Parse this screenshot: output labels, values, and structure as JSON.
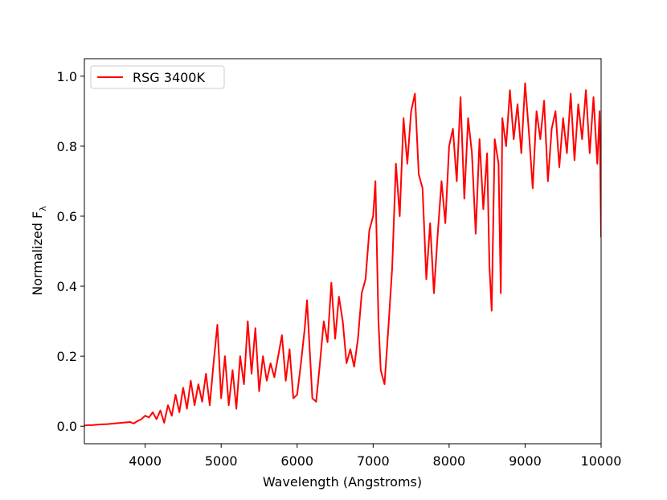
{
  "chart_data": {
    "type": "line",
    "xlabel": "Wavelength (Angstroms)",
    "ylabel": "Normalized F",
    "ylabel_subscript": "λ",
    "legend_position": "upper left",
    "xlim": [
      3200,
      10000
    ],
    "ylim": [
      -0.05,
      1.05
    ],
    "xticks": [
      4000,
      5000,
      6000,
      7000,
      8000,
      9000,
      10000
    ],
    "yticks": [
      {
        "value": 0,
        "label": "0.0"
      },
      0.2,
      0.4,
      0.6,
      0.8,
      {
        "value": 1,
        "label": "1.0"
      }
    ],
    "x": [
      3200,
      3250,
      3300,
      3400,
      3500,
      3600,
      3700,
      3800,
      3850,
      3900,
      3950,
      4000,
      4050,
      4100,
      4150,
      4200,
      4250,
      4300,
      4350,
      4400,
      4450,
      4500,
      4550,
      4600,
      4650,
      4700,
      4750,
      4800,
      4850,
      4900,
      4950,
      5000,
      5050,
      5100,
      5150,
      5200,
      5250,
      5300,
      5350,
      5400,
      5450,
      5500,
      5550,
      5600,
      5650,
      5700,
      5750,
      5800,
      5850,
      5900,
      5950,
      6000,
      6050,
      6100,
      6130,
      6170,
      6200,
      6250,
      6300,
      6350,
      6400,
      6450,
      6500,
      6550,
      6600,
      6650,
      6700,
      6750,
      6800,
      6850,
      6900,
      6950,
      7000,
      7030,
      7070,
      7100,
      7150,
      7200,
      7250,
      7300,
      7350,
      7400,
      7450,
      7500,
      7550,
      7600,
      7650,
      7700,
      7750,
      7800,
      7850,
      7900,
      7950,
      8000,
      8050,
      8100,
      8150,
      8200,
      8250,
      8300,
      8350,
      8400,
      8450,
      8500,
      8530,
      8560,
      8600,
      8650,
      8680,
      8700,
      8750,
      8800,
      8850,
      8900,
      8950,
      9000,
      9050,
      9100,
      9150,
      9200,
      9250,
      9300,
      9350,
      9400,
      9450,
      9500,
      9550,
      9600,
      9650,
      9700,
      9750,
      9800,
      9850,
      9900,
      9950,
      9980,
      10000
    ],
    "series": [
      {
        "name": "RSG 3400K",
        "color": "#ff0000",
        "values": [
          0.002,
          0.003,
          0.003,
          0.005,
          0.006,
          0.008,
          0.01,
          0.012,
          0.008,
          0.015,
          0.02,
          0.03,
          0.025,
          0.04,
          0.02,
          0.045,
          0.01,
          0.06,
          0.03,
          0.09,
          0.04,
          0.11,
          0.05,
          0.13,
          0.06,
          0.12,
          0.07,
          0.15,
          0.06,
          0.18,
          0.29,
          0.08,
          0.2,
          0.06,
          0.16,
          0.05,
          0.2,
          0.12,
          0.3,
          0.15,
          0.28,
          0.1,
          0.2,
          0.13,
          0.18,
          0.14,
          0.2,
          0.26,
          0.13,
          0.22,
          0.08,
          0.09,
          0.18,
          0.28,
          0.36,
          0.2,
          0.08,
          0.07,
          0.18,
          0.3,
          0.24,
          0.41,
          0.25,
          0.37,
          0.3,
          0.18,
          0.22,
          0.17,
          0.25,
          0.38,
          0.42,
          0.56,
          0.6,
          0.7,
          0.3,
          0.16,
          0.12,
          0.28,
          0.45,
          0.75,
          0.6,
          0.88,
          0.75,
          0.9,
          0.95,
          0.72,
          0.68,
          0.42,
          0.58,
          0.38,
          0.55,
          0.7,
          0.58,
          0.8,
          0.85,
          0.7,
          0.94,
          0.65,
          0.88,
          0.78,
          0.55,
          0.82,
          0.62,
          0.78,
          0.46,
          0.33,
          0.82,
          0.75,
          0.38,
          0.88,
          0.8,
          0.96,
          0.82,
          0.92,
          0.78,
          0.98,
          0.84,
          0.68,
          0.9,
          0.82,
          0.93,
          0.7,
          0.85,
          0.9,
          0.74,
          0.88,
          0.78,
          0.95,
          0.76,
          0.92,
          0.82,
          0.96,
          0.78,
          0.94,
          0.75,
          0.9,
          0.54
        ]
      }
    ]
  }
}
